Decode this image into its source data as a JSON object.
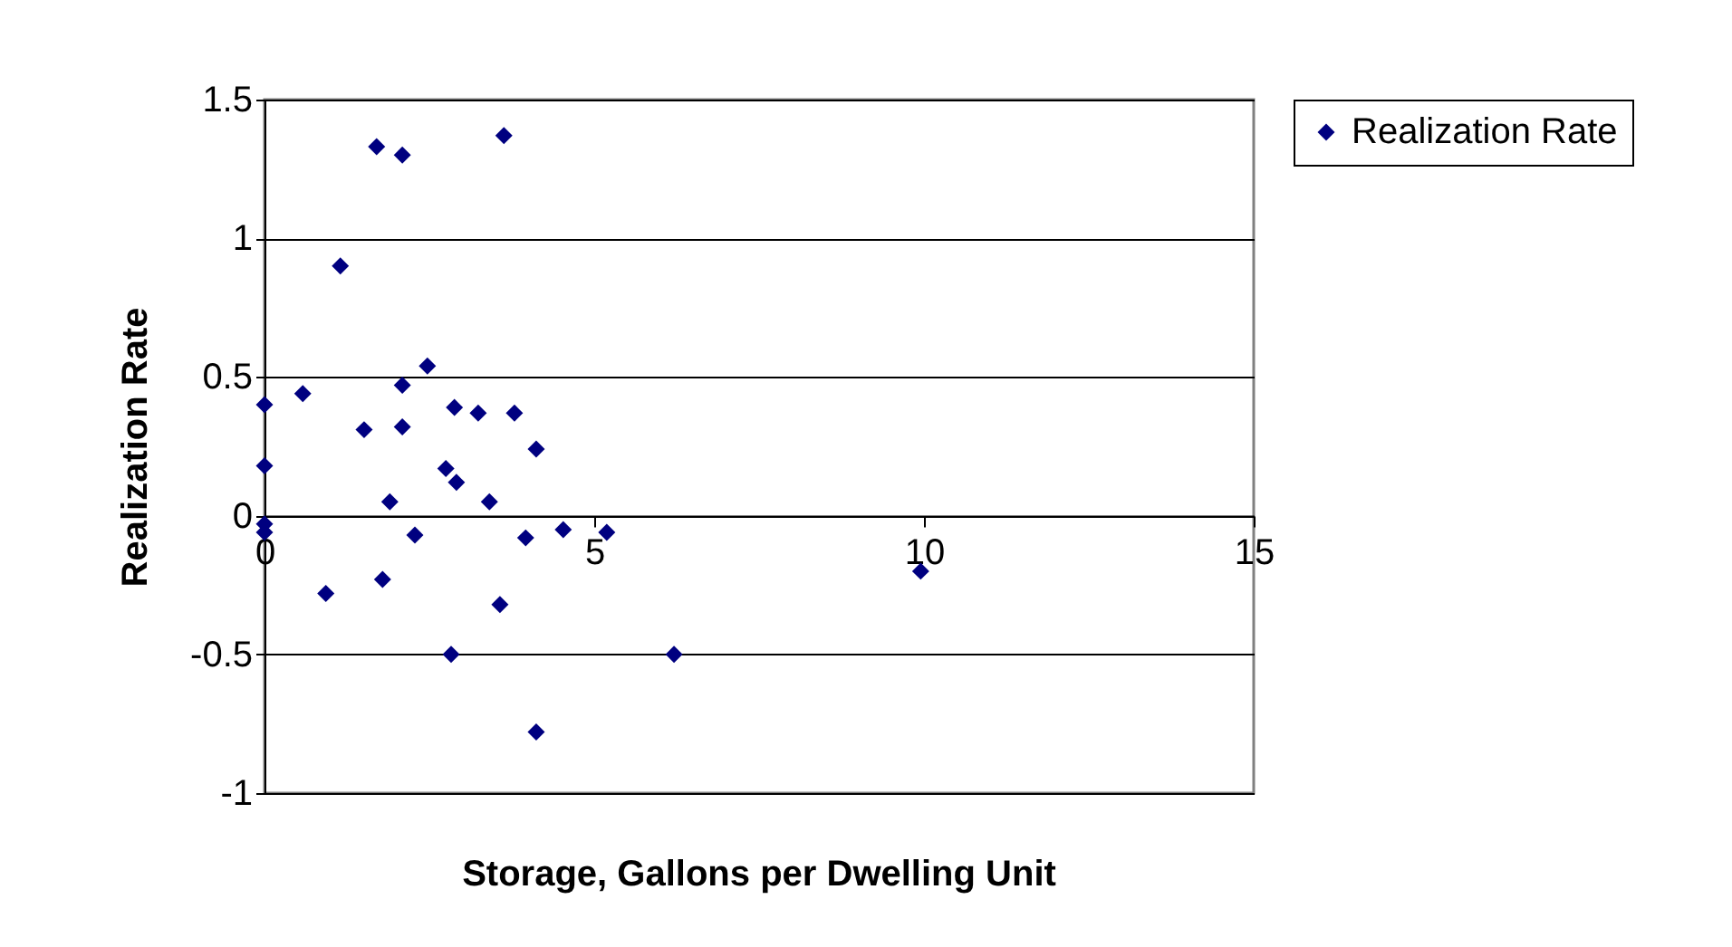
{
  "chart_data": {
    "type": "scatter",
    "xlabel": "Storage, Gallons per Dwelling Unit",
    "ylabel": "Realization Rate",
    "xlim": [
      0,
      15
    ],
    "xticks": [
      0,
      5,
      10,
      15
    ],
    "ylim": [
      -1,
      1.5
    ],
    "yticks": [
      -1,
      -0.5,
      0,
      0.5,
      1,
      1.5
    ],
    "grid": "y",
    "legend": "right",
    "marker": "diamond",
    "series": [
      {
        "name": "Realization Rate",
        "color": "#000080",
        "x": [
          0,
          0,
          0,
          0,
          0.58,
          1.15,
          0.93,
          1.51,
          1.7,
          2.09,
          1.79,
          1.9,
          2.09,
          2.09,
          2.28,
          2.47,
          2.75,
          2.91,
          2.83,
          2.88,
          3.24,
          3.41,
          3.63,
          3.57,
          3.79,
          3.96,
          4.12,
          4.12,
          4.53,
          5.19,
          6.21,
          9.95
        ],
        "values": [
          0.4,
          0.18,
          -0.03,
          -0.06,
          0.44,
          0.9,
          -0.28,
          0.31,
          1.33,
          1.3,
          -0.23,
          0.05,
          0.47,
          0.32,
          -0.07,
          0.54,
          0.17,
          0.12,
          -0.5,
          0.39,
          0.37,
          0.05,
          1.37,
          -0.32,
          0.37,
          -0.08,
          0.24,
          -0.78,
          -0.05,
          -0.06,
          -0.5,
          -0.2
        ]
      }
    ]
  }
}
